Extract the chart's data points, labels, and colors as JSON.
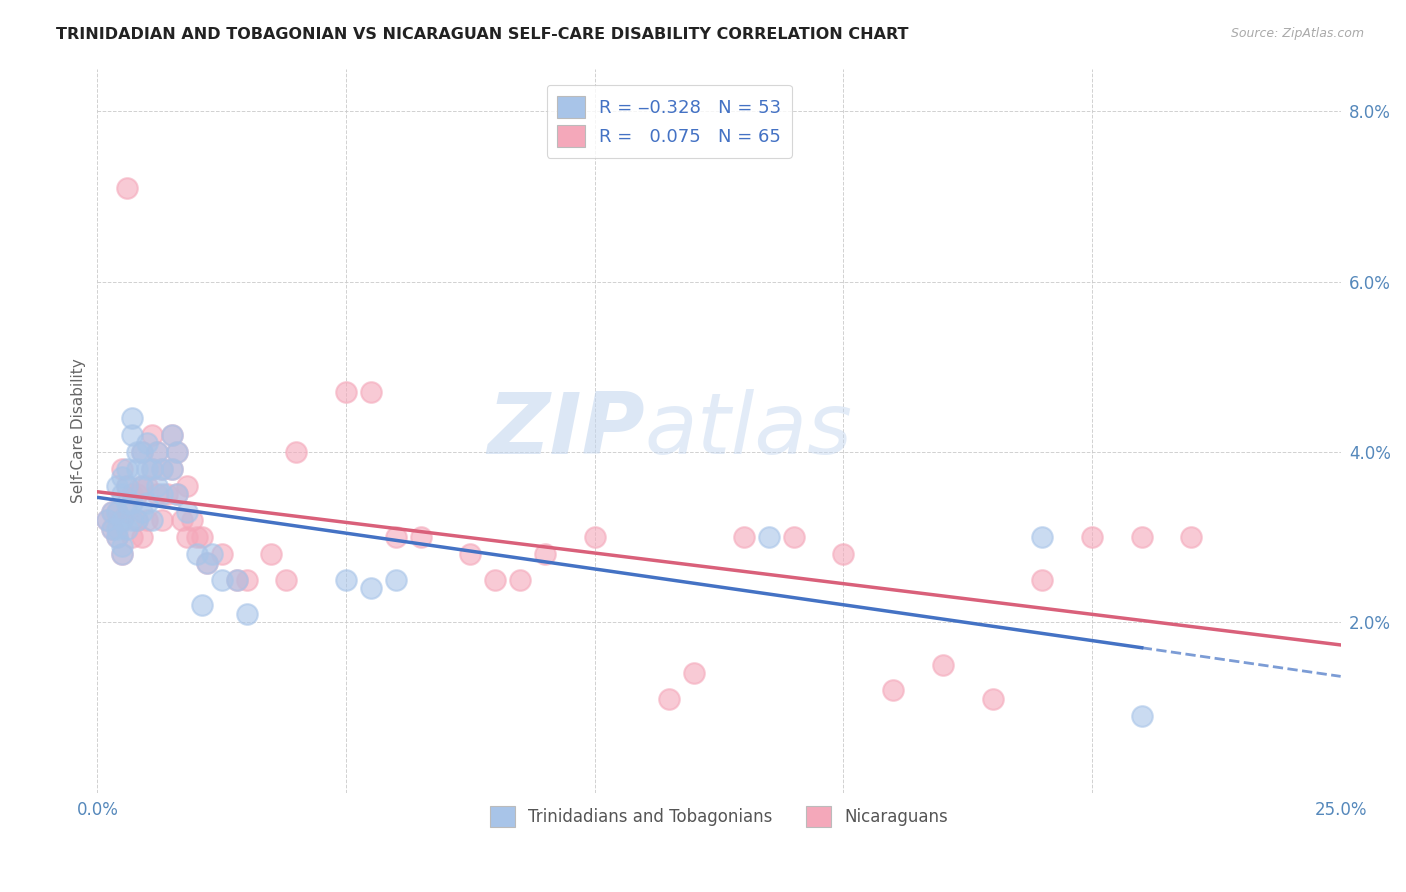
{
  "title": "TRINIDADIAN AND TOBAGONIAN VS NICARAGUAN SELF-CARE DISABILITY CORRELATION CHART",
  "source": "Source: ZipAtlas.com",
  "ylabel": "Self-Care Disability",
  "x_min": 0.0,
  "x_max": 0.25,
  "y_min": 0.0,
  "y_max": 0.085,
  "blue_color": "#a8c4e8",
  "pink_color": "#f4a8ba",
  "blue_line_color": "#4472c4",
  "pink_line_color": "#d9607a",
  "legend_blue_label": "R = ‒0.328   N = 53",
  "legend_pink_label": "R =   0.075   N = 65",
  "bottom_legend_blue": "Trinidadians and Tobagonians",
  "bottom_legend_pink": "Nicaraguans",
  "watermark_zip": "ZIP",
  "watermark_atlas": "atlas",
  "blue_scatter_x": [
    0.002,
    0.003,
    0.003,
    0.004,
    0.004,
    0.004,
    0.004,
    0.005,
    0.005,
    0.005,
    0.005,
    0.005,
    0.006,
    0.006,
    0.006,
    0.006,
    0.007,
    0.007,
    0.007,
    0.007,
    0.008,
    0.008,
    0.008,
    0.009,
    0.009,
    0.009,
    0.01,
    0.01,
    0.01,
    0.011,
    0.011,
    0.012,
    0.012,
    0.013,
    0.013,
    0.015,
    0.015,
    0.016,
    0.016,
    0.018,
    0.02,
    0.021,
    0.022,
    0.023,
    0.025,
    0.028,
    0.03,
    0.05,
    0.055,
    0.06,
    0.135,
    0.19,
    0.21
  ],
  "blue_scatter_y": [
    0.032,
    0.031,
    0.033,
    0.03,
    0.031,
    0.033,
    0.036,
    0.029,
    0.032,
    0.035,
    0.037,
    0.028,
    0.031,
    0.034,
    0.036,
    0.038,
    0.032,
    0.034,
    0.042,
    0.044,
    0.032,
    0.038,
    0.04,
    0.033,
    0.036,
    0.04,
    0.034,
    0.038,
    0.041,
    0.032,
    0.038,
    0.036,
    0.04,
    0.035,
    0.038,
    0.038,
    0.042,
    0.035,
    0.04,
    0.033,
    0.028,
    0.022,
    0.027,
    0.028,
    0.025,
    0.025,
    0.021,
    0.025,
    0.024,
    0.025,
    0.03,
    0.03,
    0.009
  ],
  "pink_scatter_x": [
    0.002,
    0.003,
    0.003,
    0.004,
    0.004,
    0.005,
    0.005,
    0.005,
    0.006,
    0.006,
    0.006,
    0.007,
    0.007,
    0.008,
    0.008,
    0.009,
    0.009,
    0.009,
    0.01,
    0.01,
    0.011,
    0.011,
    0.012,
    0.012,
    0.013,
    0.013,
    0.014,
    0.015,
    0.015,
    0.016,
    0.016,
    0.017,
    0.018,
    0.018,
    0.019,
    0.02,
    0.021,
    0.022,
    0.025,
    0.028,
    0.03,
    0.035,
    0.038,
    0.04,
    0.05,
    0.055,
    0.06,
    0.065,
    0.075,
    0.08,
    0.085,
    0.09,
    0.1,
    0.115,
    0.12,
    0.13,
    0.14,
    0.15,
    0.16,
    0.17,
    0.18,
    0.19,
    0.2,
    0.21,
    0.22
  ],
  "pink_scatter_y": [
    0.032,
    0.031,
    0.033,
    0.03,
    0.033,
    0.028,
    0.032,
    0.038,
    0.033,
    0.036,
    0.071,
    0.03,
    0.035,
    0.032,
    0.035,
    0.03,
    0.036,
    0.04,
    0.032,
    0.036,
    0.038,
    0.042,
    0.035,
    0.04,
    0.032,
    0.038,
    0.035,
    0.038,
    0.042,
    0.035,
    0.04,
    0.032,
    0.03,
    0.036,
    0.032,
    0.03,
    0.03,
    0.027,
    0.028,
    0.025,
    0.025,
    0.028,
    0.025,
    0.04,
    0.047,
    0.047,
    0.03,
    0.03,
    0.028,
    0.025,
    0.025,
    0.028,
    0.03,
    0.011,
    0.014,
    0.03,
    0.03,
    0.028,
    0.012,
    0.015,
    0.011,
    0.025,
    0.03,
    0.03,
    0.03
  ],
  "background_color": "#ffffff",
  "grid_color": "#cccccc",
  "title_color": "#222222",
  "tick_label_color": "#5588bb",
  "ylabel_color": "#666666"
}
